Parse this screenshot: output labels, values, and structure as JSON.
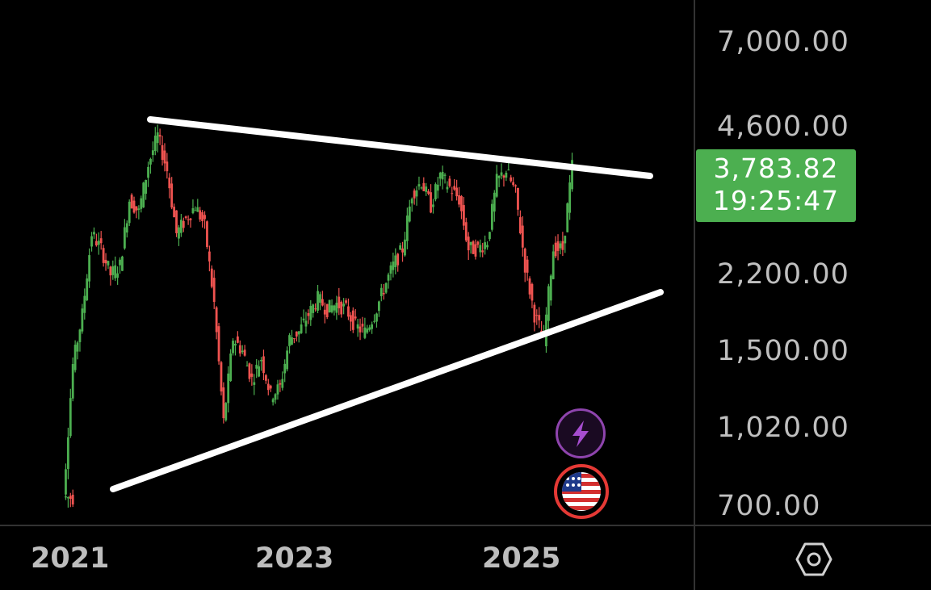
{
  "price_axis": {
    "labels": [
      "7,000.00",
      "4,600.00",
      "2,200.00",
      "1,500.00",
      "1,020.00",
      "700.00"
    ]
  },
  "time_axis": {
    "labels": [
      "2021",
      "2023",
      "2025"
    ]
  },
  "current_price": {
    "value": "3,783.82",
    "countdown": "19:25:47",
    "color": "#4caf50"
  },
  "colors": {
    "up": "#4caf50",
    "down": "#ef5350",
    "trendline": "#ffffff",
    "background": "#000000"
  },
  "icons": {
    "bolt": "lightning-bolt-icon",
    "flag": "us-flag-icon",
    "settings": "hexagon-settings-icon"
  },
  "chart_data": {
    "type": "line",
    "scale": "log",
    "ylim": [
      650,
      8500
    ],
    "yticks": [
      7000,
      4600,
      2200,
      1500,
      1020,
      700
    ],
    "xticks": [
      "2021",
      "2023",
      "2025"
    ],
    "xlim": [
      "2020-12",
      "2026-06"
    ],
    "series": [
      {
        "x": [
          "2021-01",
          "2021-02",
          "2021-03",
          "2021-04",
          "2021-05",
          "2021-06",
          "2021-07",
          "2021-08",
          "2021-09",
          "2021-10",
          "2021-11",
          "2021-12",
          "2022-01",
          "2022-02",
          "2022-03",
          "2022-04",
          "2022-05",
          "2022-06",
          "2022-07",
          "2022-08",
          "2022-09",
          "2022-10",
          "2022-11",
          "2022-12",
          "2023-01",
          "2023-02",
          "2023-03",
          "2023-04",
          "2023-05",
          "2023-06",
          "2023-07",
          "2023-08",
          "2023-09",
          "2023-10",
          "2023-11",
          "2023-12",
          "2024-01",
          "2024-02",
          "2024-03",
          "2024-04",
          "2024-05",
          "2024-06",
          "2024-07",
          "2024-08",
          "2024-09",
          "2024-10",
          "2024-11",
          "2024-12",
          "2025-01",
          "2025-02",
          "2025-03",
          "2025-04",
          "2025-05",
          "2025-06",
          "2025-07"
        ],
        "values": [
          730,
          1400,
          1800,
          2700,
          2500,
          2200,
          2300,
          3200,
          3000,
          3800,
          4400,
          3700,
          2700,
          2900,
          3100,
          2800,
          1900,
          1050,
          1600,
          1500,
          1300,
          1450,
          1200,
          1250,
          1600,
          1650,
          1800,
          1950,
          1850,
          1900,
          1850,
          1700,
          1650,
          1800,
          2050,
          2300,
          2500,
          3300,
          3500,
          3100,
          3600,
          3400,
          3200,
          2500,
          2500,
          2600,
          3500,
          3700,
          3300,
          2300,
          1800,
          1600,
          2500,
          2500,
          3780
        ]
      }
    ],
    "trendlines": [
      {
        "from": [
          "2021-07",
          4900
        ],
        "to": [
          "2026-05",
          3800
        ]
      },
      {
        "from": [
          "2021-06",
          850
        ],
        "to": [
          "2026-05",
          2100
        ]
      }
    ]
  }
}
